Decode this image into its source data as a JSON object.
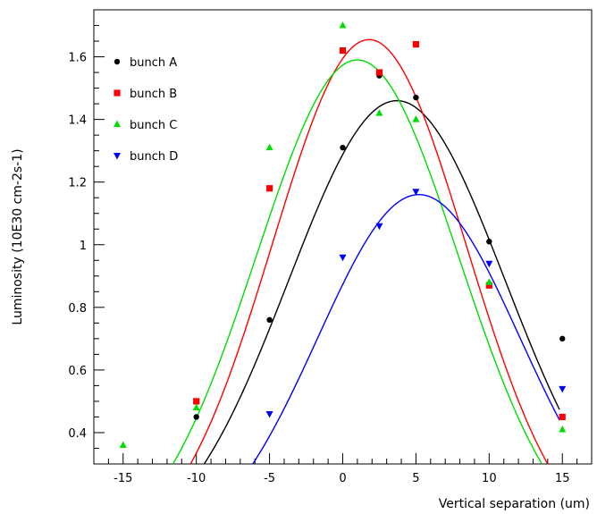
{
  "chart_data": {
    "type": "scatter",
    "title": "",
    "xlabel": "Vertical separation (um)",
    "ylabel": "Luminosity (10E30 cm-2s-1)",
    "xlim": [
      -17,
      17
    ],
    "ylim": [
      0.3,
      1.75
    ],
    "xticks": [
      -15,
      -10,
      -5,
      0,
      5,
      10,
      15
    ],
    "xtick_labels": [
      "-15",
      "-10",
      "-5",
      "0",
      "5",
      "10",
      "15"
    ],
    "yticks": [
      0.4,
      0.6,
      0.8,
      1.0,
      1.2,
      1.4,
      1.6
    ],
    "ytick_labels": [
      "0.4",
      "0.6",
      "0.8",
      "1",
      "1.2",
      "1.4",
      "1.6"
    ],
    "grid": false,
    "legend_position": "top-left",
    "series": [
      {
        "name": "bunch A",
        "color": "#000000",
        "marker": "circle",
        "points": [
          [
            -10,
            0.45
          ],
          [
            -5,
            0.76
          ],
          [
            0,
            1.31
          ],
          [
            2.5,
            1.54
          ],
          [
            5,
            1.47
          ],
          [
            10,
            1.01
          ],
          [
            15,
            0.7
          ]
        ],
        "fit": {
          "amplitude": 1.46,
          "mean": 3.7,
          "sigma": 7.4,
          "x_range": [
            -11.5,
            14.8
          ]
        }
      },
      {
        "name": "bunch B",
        "color": "#ff0000",
        "marker": "square",
        "points": [
          [
            -10,
            0.5
          ],
          [
            -5,
            1.18
          ],
          [
            0,
            1.62
          ],
          [
            2.5,
            1.55
          ],
          [
            5,
            1.64
          ],
          [
            10,
            0.87
          ],
          [
            15,
            0.45
          ]
        ],
        "fit": {
          "amplitude": 1.655,
          "mean": 1.8,
          "sigma": 6.6,
          "x_range": [
            -12.9,
            14.8
          ]
        }
      },
      {
        "name": "bunch C",
        "color": "#00dd00",
        "marker": "triangle-up",
        "points": [
          [
            -15,
            0.36
          ],
          [
            -10,
            0.48
          ],
          [
            -5,
            1.31
          ],
          [
            0,
            1.7
          ],
          [
            2.5,
            1.42
          ],
          [
            5,
            1.4
          ],
          [
            10,
            0.88
          ],
          [
            15,
            0.41
          ]
        ],
        "fit": {
          "amplitude": 1.59,
          "mean": 1.0,
          "sigma": 6.9,
          "x_range": [
            -14.3,
            14.8
          ]
        }
      },
      {
        "name": "bunch D",
        "color": "#0000ff",
        "marker": "triangle-down",
        "points": [
          [
            -5,
            0.46
          ],
          [
            0,
            0.96
          ],
          [
            2.5,
            1.06
          ],
          [
            5,
            1.17
          ],
          [
            10,
            0.94
          ],
          [
            15,
            0.54
          ]
        ],
        "fit": {
          "amplitude": 1.16,
          "mean": 5.2,
          "sigma": 6.9,
          "x_range": [
            -7.6,
            14.8
          ]
        }
      }
    ]
  }
}
